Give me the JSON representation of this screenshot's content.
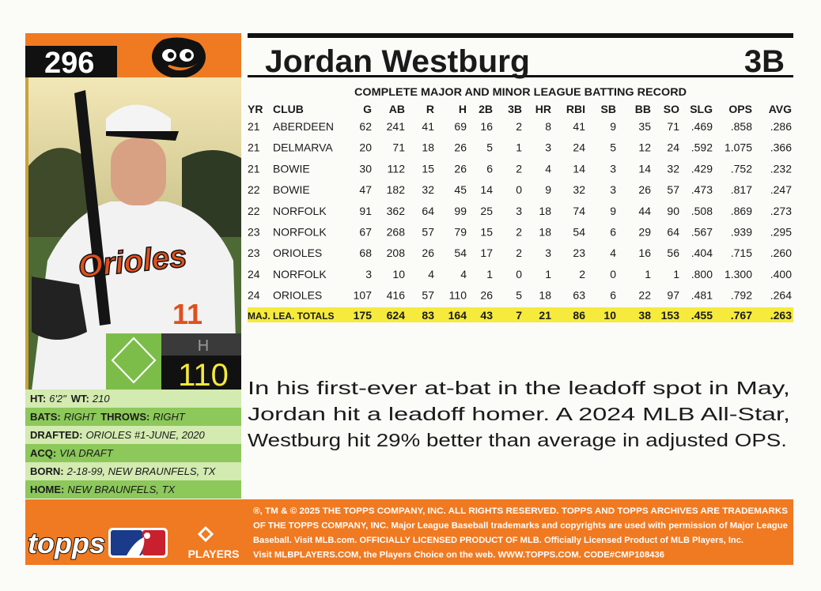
{
  "card_number": "296",
  "player": {
    "name": "Jordan Westburg",
    "position": "3B"
  },
  "stat_box": {
    "label": "H",
    "value": "110"
  },
  "info": {
    "rows": [
      [
        {
          "label": "HT:",
          "value": "6'2\""
        },
        {
          "label": "WT:",
          "value": "210"
        }
      ],
      [
        {
          "label": "BATS:",
          "value": "RIGHT"
        },
        {
          "label": "THROWS:",
          "value": "RIGHT"
        }
      ],
      [
        {
          "label": "DRAFTED:",
          "value": "ORIOLES #1-JUNE, 2020"
        }
      ],
      [
        {
          "label": "ACQ:",
          "value": "VIA DRAFT"
        }
      ],
      [
        {
          "label": "BORN:",
          "value": "2-18-99, NEW BRAUNFELS, TX"
        }
      ],
      [
        {
          "label": "HOME:",
          "value": "NEW BRAUNFELS, TX"
        }
      ]
    ]
  },
  "record": {
    "title": "COMPLETE MAJOR AND MINOR LEAGUE BATTING RECORD",
    "columns": [
      "YR",
      "CLUB",
      "G",
      "AB",
      "R",
      "H",
      "2B",
      "3B",
      "HR",
      "RBI",
      "SB",
      "BB",
      "SO",
      "SLG",
      "OPS",
      "AVG"
    ],
    "rows": [
      [
        "21",
        "ABERDEEN",
        "62",
        "241",
        "41",
        "69",
        "16",
        "2",
        "8",
        "41",
        "9",
        "35",
        "71",
        ".469",
        ".858",
        ".286"
      ],
      [
        "21",
        "DELMARVA",
        "20",
        "71",
        "18",
        "26",
        "5",
        "1",
        "3",
        "24",
        "5",
        "12",
        "24",
        ".592",
        "1.075",
        ".366"
      ],
      [
        "21",
        "BOWIE",
        "30",
        "112",
        "15",
        "26",
        "6",
        "2",
        "4",
        "14",
        "3",
        "14",
        "32",
        ".429",
        ".752",
        ".232"
      ],
      [
        "22",
        "BOWIE",
        "47",
        "182",
        "32",
        "45",
        "14",
        "0",
        "9",
        "32",
        "3",
        "26",
        "57",
        ".473",
        ".817",
        ".247"
      ],
      [
        "22",
        "NORFOLK",
        "91",
        "362",
        "64",
        "99",
        "25",
        "3",
        "18",
        "74",
        "9",
        "44",
        "90",
        ".508",
        ".869",
        ".273"
      ],
      [
        "23",
        "NORFOLK",
        "67",
        "268",
        "57",
        "79",
        "15",
        "2",
        "18",
        "54",
        "6",
        "29",
        "64",
        ".567",
        ".939",
        ".295"
      ],
      [
        "23",
        "ORIOLES",
        "68",
        "208",
        "26",
        "54",
        "17",
        "2",
        "3",
        "23",
        "4",
        "16",
        "56",
        ".404",
        ".715",
        ".260"
      ],
      [
        "24",
        "NORFOLK",
        "3",
        "10",
        "4",
        "4",
        "1",
        "0",
        "1",
        "2",
        "0",
        "1",
        "1",
        ".800",
        "1.300",
        ".400"
      ],
      [
        "24",
        "ORIOLES",
        "107",
        "416",
        "57",
        "110",
        "26",
        "5",
        "18",
        "63",
        "6",
        "22",
        "97",
        ".481",
        ".792",
        ".264"
      ]
    ],
    "totals": [
      "MAJ. LEA. TOTALS",
      "175",
      "624",
      "83",
      "164",
      "43",
      "7",
      "21",
      "86",
      "10",
      "38",
      "153",
      ".455",
      ".767",
      ".263"
    ]
  },
  "bio": [
    "In his first-ever at-bat in the leadoff spot in May,",
    "Jordan hit a leadoff homer. A 2024 MLB All-Star,",
    "Westburg hit 29% better than average in adjusted OPS."
  ],
  "legal": [
    "®, TM & © 2025 THE TOPPS COMPANY, INC. ALL RIGHTS RESERVED. TOPPS AND TOPPS ARCHIVES ARE TRADEMARKS",
    "OF THE TOPPS COMPANY, INC. Major League Baseball trademarks and copyrights are used with permission of Major League",
    "Baseball. Visit MLB.com. OFFICIALLY LICENSED PRODUCT OF MLB. Officially Licensed Product of MLB Players, Inc.",
    "Visit MLBPLAYERS.COM, the Players Choice on the web. WWW.TOPPS.COM. CODE#CMP108436"
  ],
  "logos": {
    "topps": "topps",
    "players": "PLAYERS"
  }
}
